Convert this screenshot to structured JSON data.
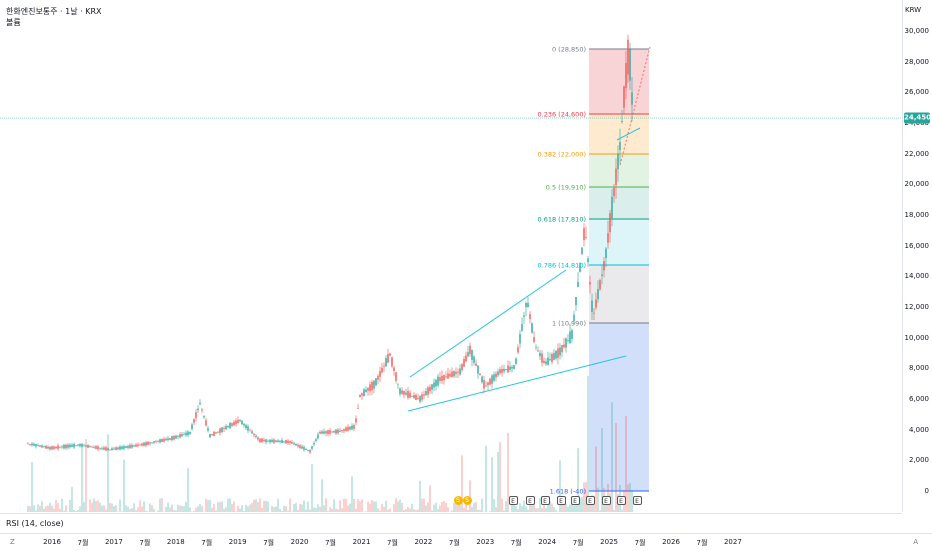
{
  "header": {
    "title": "한화엔진보통주 · 1날 · KRX",
    "subtitle": "볼륨"
  },
  "price_axis": {
    "currency": "KRW",
    "labels": [
      "30,000",
      "28,000",
      "26,000",
      "24,000",
      "22,000",
      "20,000",
      "18,000",
      "16,000",
      "14,000",
      "12,000",
      "10,000",
      "8,000",
      "6,000",
      "4,000",
      "2,000",
      "0"
    ],
    "current_price": "24,450"
  },
  "fib": {
    "levels": [
      {
        "label": "0 (28,850)",
        "color": "#787b86"
      },
      {
        "label": "0.236 (24,600)",
        "color": "#f23645"
      },
      {
        "label": "0.382 (22,000)",
        "color": "#ff9800"
      },
      {
        "label": "0.5 (19,910)",
        "color": "#4caf50"
      },
      {
        "label": "0.618 (17,810)",
        "color": "#089981"
      },
      {
        "label": "0.786 (14,810)",
        "color": "#00bcd4"
      },
      {
        "label": "1 (10,990)",
        "color": "#787b86"
      },
      {
        "label": "1.618 (-40)",
        "color": "#2962ff"
      }
    ]
  },
  "events": {
    "dividend": "S",
    "earnings": "E"
  },
  "rsi": {
    "label": "RSI (14, close)"
  },
  "time_axis": {
    "labels": [
      "2016",
      "7월",
      "2017",
      "7월",
      "2018",
      "7월",
      "2019",
      "7월",
      "2020",
      "7월",
      "2021",
      "7월",
      "2022",
      "7월",
      "2023",
      "7월",
      "2024",
      "7월",
      "2025",
      "7월",
      "2026",
      "7월",
      "2027"
    ],
    "zoom": "Z",
    "auto": "A"
  },
  "colors": {
    "up": "#26a69a",
    "down": "#ef5350",
    "trend": "#26c6da"
  }
}
